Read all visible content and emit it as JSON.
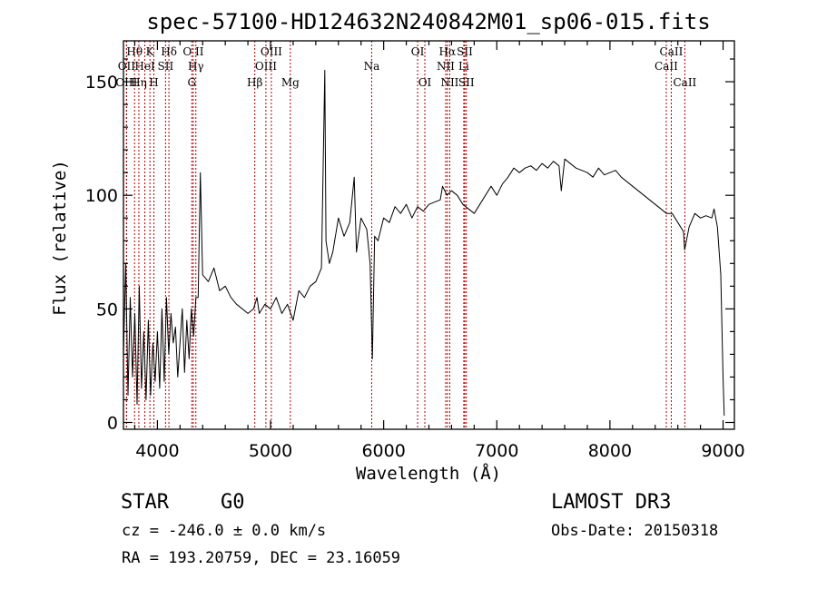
{
  "chart_data": {
    "type": "line",
    "title": "spec-57100-HD124632N240842M01_sp06-015.fits",
    "xlabel": "Wavelength (Å)",
    "ylabel": "Flux (relative)",
    "xlim": [
      3700,
      9100
    ],
    "ylim": [
      -3,
      168
    ],
    "x_ticks": [
      4000,
      5000,
      6000,
      7000,
      8000,
      9000
    ],
    "y_ticks": [
      0,
      50,
      100,
      150
    ],
    "grid": false,
    "legend": "none",
    "series": [
      {
        "x": [
          3700,
          3720,
          3740,
          3760,
          3780,
          3800,
          3820,
          3840,
          3860,
          3880,
          3900,
          3920,
          3940,
          3960,
          3980,
          4000,
          4020,
          4040,
          4060,
          4080,
          4100,
          4120,
          4140,
          4160,
          4180,
          4200,
          4220,
          4240,
          4260,
          4280,
          4300,
          4320,
          4340,
          4360,
          4380,
          4400,
          4450,
          4500,
          4550,
          4600,
          4650,
          4700,
          4750,
          4800,
          4850,
          4880,
          4900,
          4950,
          5000,
          5050,
          5100,
          5150,
          5200,
          5250,
          5300,
          5350,
          5400,
          5450,
          5480,
          5490,
          5520,
          5550,
          5600,
          5650,
          5700,
          5740,
          5760,
          5800,
          5850,
          5880,
          5900,
          5920,
          5950,
          6000,
          6050,
          6100,
          6150,
          6200,
          6250,
          6300,
          6350,
          6400,
          6450,
          6500,
          6520,
          6560,
          6600,
          6650,
          6700,
          6750,
          6800,
          6850,
          6900,
          6950,
          7000,
          7050,
          7100,
          7150,
          7200,
          7250,
          7300,
          7350,
          7400,
          7450,
          7500,
          7550,
          7570,
          7600,
          7650,
          7700,
          7750,
          7800,
          7850,
          7900,
          7950,
          8000,
          8050,
          8100,
          8150,
          8200,
          8250,
          8300,
          8350,
          8400,
          8450,
          8500,
          8550,
          8600,
          8650,
          8660,
          8700,
          8750,
          8800,
          8850,
          8900,
          8920,
          8950,
          8980,
          9000,
          9010
        ],
        "y": [
          30,
          70,
          12,
          55,
          20,
          48,
          8,
          60,
          15,
          40,
          10,
          45,
          12,
          35,
          18,
          40,
          15,
          50,
          18,
          55,
          30,
          48,
          35,
          42,
          20,
          35,
          50,
          22,
          45,
          28,
          50,
          38,
          55,
          55,
          110,
          65,
          62,
          68,
          58,
          60,
          55,
          52,
          50,
          48,
          50,
          55,
          48,
          52,
          50,
          55,
          48,
          52,
          45,
          58,
          55,
          60,
          62,
          68,
          155,
          80,
          70,
          75,
          90,
          82,
          88,
          108,
          75,
          90,
          85,
          70,
          28,
          82,
          80,
          90,
          88,
          95,
          92,
          96,
          90,
          95,
          93,
          96,
          97,
          98,
          104,
          100,
          102,
          100,
          96,
          94,
          92,
          96,
          100,
          104,
          100,
          105,
          108,
          112,
          110,
          112,
          113,
          111,
          114,
          112,
          115,
          113,
          102,
          116,
          114,
          112,
          111,
          110,
          108,
          112,
          109,
          110,
          111,
          108,
          106,
          104,
          102,
          100,
          98,
          96,
          94,
          92,
          92,
          88,
          84,
          76,
          86,
          92,
          90,
          91,
          90,
          94,
          86,
          65,
          20,
          3
        ]
      }
    ],
    "emission_lines": [
      {
        "label": "Hθ",
        "x": 3798,
        "row": 1
      },
      {
        "label": "OII",
        "x": 3727,
        "row": 2
      },
      {
        "label": "OIII",
        "x": 3727,
        "row": 3
      },
      {
        "label": "Hη",
        "x": 3836,
        "row": 3
      },
      {
        "label": "K",
        "x": 3934,
        "row": 1
      },
      {
        "label": "HeI",
        "x": 3889,
        "row": 2
      },
      {
        "label": "H",
        "x": 3969,
        "row": 3
      },
      {
        "label": "SII",
        "x": 4072,
        "row": 2
      },
      {
        "label": "Hδ",
        "x": 4102,
        "row": 1
      },
      {
        "label": "O II",
        "x": 4317,
        "row": 1
      },
      {
        "label": "Hγ",
        "x": 4340,
        "row": 2
      },
      {
        "label": "G",
        "x": 4304,
        "row": 3
      },
      {
        "label": "OIII",
        "x": 5007,
        "row": 1
      },
      {
        "label": "OIII",
        "x": 4959,
        "row": 2
      },
      {
        "label": "Hβ",
        "x": 4861,
        "row": 3
      },
      {
        "label": "Mg",
        "x": 5175,
        "row": 3
      },
      {
        "label": "Na",
        "x": 5894,
        "row": 2
      },
      {
        "label": "OI",
        "x": 6300,
        "row": 1
      },
      {
        "label": "OI",
        "x": 6364,
        "row": 3
      },
      {
        "label": "Hα",
        "x": 6563,
        "row": 1
      },
      {
        "label": "SII",
        "x": 6717,
        "row": 1
      },
      {
        "label": "NII",
        "x": 6548,
        "row": 2
      },
      {
        "label": "Li",
        "x": 6708,
        "row": 2
      },
      {
        "label": "NII",
        "x": 6584,
        "row": 3
      },
      {
        "label": "SII",
        "x": 6731,
        "row": 3
      },
      {
        "label": "CaII",
        "x": 8542,
        "row": 1
      },
      {
        "label": "CaII",
        "x": 8498,
        "row": 2
      },
      {
        "label": "CaII",
        "x": 8662,
        "row": 3
      }
    ]
  },
  "footer": {
    "object_class": "STAR",
    "subclass": "G0",
    "survey": "LAMOST DR3",
    "redshift_text": "cz = -246.0 ± 0.0 km/s",
    "obs_date_text": "Obs-Date: 20150318",
    "coords_text": "RA = 193.20759, DEC =  23.16059"
  }
}
